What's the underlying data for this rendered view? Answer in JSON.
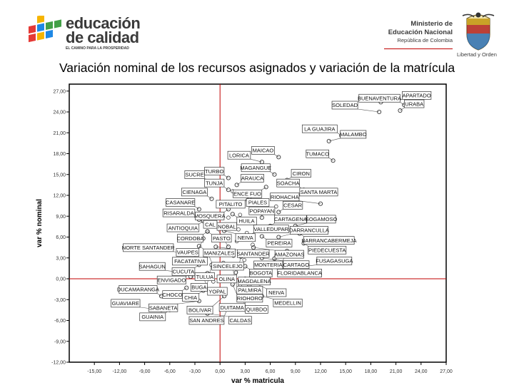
{
  "header": {
    "logo_line1": "educación",
    "logo_line2": "de calidad",
    "logo_tagline": "EL CAMINO PARA LA PROSPERIDAD",
    "ministry_line1": "Ministerio de",
    "ministry_line2": "Educación Nacional",
    "ministry_line3": "República de Colombia",
    "crest_caption": "Libertad y Orden",
    "logo_colors": [
      "#e53935",
      "#f6b400",
      "#1e88e5",
      "#43a047"
    ]
  },
  "chart_data": {
    "type": "scatter",
    "title": "Variación nominal de los recursos asignados y variación de la matrícula",
    "xlabel": "var % matricula",
    "ylabel": "var % nominal",
    "xlim": [
      -18,
      27
    ],
    "ylim": [
      -12,
      28
    ],
    "x_ticks": [
      -15,
      -12,
      -9,
      -6,
      -3,
      0,
      3,
      6,
      9,
      12,
      15,
      18,
      21,
      24,
      27
    ],
    "x_tick_labels": [
      "-15,00",
      "-12,00",
      "-9,00",
      "-6,00",
      "-3,00",
      "0,00",
      "3,00",
      "6,00",
      "9,00",
      "12,00",
      "15,00",
      "18,00",
      "21,00",
      "24,00",
      "27,00"
    ],
    "y_ticks": [
      -12,
      -9,
      -6,
      -3,
      0,
      3,
      6,
      9,
      12,
      15,
      18,
      21,
      24,
      27
    ],
    "y_tick_labels": [
      "-12,00",
      "-9,00",
      "-6,00",
      "-3,00",
      "0,00",
      "3,00",
      "6,00",
      "9,00",
      "12,00",
      "15,00",
      "18,00",
      "21,00",
      "24,00",
      "27,00"
    ],
    "reference_lines": {
      "x": 0,
      "y": 0,
      "color": "#c00000"
    },
    "grid": false,
    "points": [
      {
        "label": "BUENAVENTURA",
        "x": 22.0,
        "y": 25.0
      },
      {
        "label": "APARTADO",
        "x": 19.2,
        "y": 25.4
      },
      {
        "label": "URABA",
        "x": 21.5,
        "y": 24.2
      },
      {
        "label": "SOLEDAD",
        "x": 19.0,
        "y": 24.0
      },
      {
        "label": "LA GUAJIRA",
        "x": 14.5,
        "y": 20.6
      },
      {
        "label": "MALAMBO",
        "x": 13.0,
        "y": 19.8
      },
      {
        "label": "MAICAO",
        "x": 7.0,
        "y": 17.5
      },
      {
        "label": "LORICA",
        "x": 5.0,
        "y": 16.8
      },
      {
        "label": "TUMACO",
        "x": 13.5,
        "y": 17.0
      },
      {
        "label": "TURBO",
        "x": 1.0,
        "y": 14.5
      },
      {
        "label": "MAGANGUE",
        "x": 6.5,
        "y": 15.0
      },
      {
        "label": "SUCRE",
        "x": -0.5,
        "y": 14.0
      },
      {
        "label": "CIRON",
        "x": 8.0,
        "y": 14.2
      },
      {
        "label": "ARAUCA",
        "x": 2.0,
        "y": 13.5
      },
      {
        "label": "ENCE FUO",
        "x": 5.5,
        "y": 13.2
      },
      {
        "label": "TUNJA",
        "x": 1.0,
        "y": 12.8
      },
      {
        "label": "SOACHA",
        "x": 10.0,
        "y": 12.8
      },
      {
        "label": "PITALITO",
        "x": 3.5,
        "y": 11.7
      },
      {
        "label": "SANTA MARTA",
        "x": 9.0,
        "y": 11.5
      },
      {
        "label": "CIENAGA",
        "x": -1.0,
        "y": 11.5
      },
      {
        "label": "RIOHACHA",
        "x": 12.0,
        "y": 10.8
      },
      {
        "label": "PIALES",
        "x": 4.5,
        "y": 10.0
      },
      {
        "label": "CASANARE",
        "x": -2.5,
        "y": 10.0
      },
      {
        "label": "MOSQUERA",
        "x": 1.0,
        "y": 10.0
      },
      {
        "label": "CESAR",
        "x": 7.0,
        "y": 9.6
      },
      {
        "label": "HUILA",
        "x": 1.5,
        "y": 9.3
      },
      {
        "label": "RISARALDA",
        "x": -2.5,
        "y": 8.5
      },
      {
        "label": "ANTIOQUIA",
        "x": -2.0,
        "y": 8.3
      },
      {
        "label": "POPAYAN",
        "x": 5.0,
        "y": 8.8
      },
      {
        "label": "NOBAL",
        "x": 2.5,
        "y": 8.5
      },
      {
        "label": "CARTAGENA",
        "x": 6.0,
        "y": 7.6
      },
      {
        "label": "SOGAMOSO",
        "x": 9.0,
        "y": 7.6
      },
      {
        "label": "CORDOBA",
        "x": -1.5,
        "y": 6.8
      },
      {
        "label": "PASTO",
        "x": -1.5,
        "y": 6.8
      },
      {
        "label": "NEIVA",
        "x": 0.5,
        "y": 6.9
      },
      {
        "label": "BARRANCABERMEJA",
        "x": 9.5,
        "y": 6.5
      },
      {
        "label": "VALLEDUPAR",
        "x": 3.5,
        "y": 6.2
      },
      {
        "label": "PEREIRA",
        "x": 5.0,
        "y": 6.1
      },
      {
        "label": "DARRANCULLA",
        "x": 7.0,
        "y": 6.0
      },
      {
        "label": "VAUPES",
        "x": -2.0,
        "y": 5.8
      },
      {
        "label": "PIEDECUESTA",
        "x": 10.0,
        "y": 5.1
      },
      {
        "label": "MANIZALES",
        "x": -2.5,
        "y": 4.7
      },
      {
        "label": "SANTANDER",
        "x": -0.5,
        "y": 4.6
      },
      {
        "label": "CAL",
        "x": 1.0,
        "y": 4.6
      },
      {
        "label": "AMAZONAS",
        "x": 4.0,
        "y": 4.5
      },
      {
        "label": "MONTERIA",
        "x": 8.0,
        "y": 4.0
      },
      {
        "label": "NORTE SANTANDER",
        "x": -3.0,
        "y": 3.5
      },
      {
        "label": "FACATATIVA",
        "x": -1.0,
        "y": 3.5
      },
      {
        "label": "SINCELEJO",
        "x": -1.5,
        "y": 3.8
      },
      {
        "label": "OLINA",
        "x": 2.5,
        "y": 3.2
      },
      {
        "label": "CARTAGO",
        "x": 5.0,
        "y": 3.0
      },
      {
        "label": "MAGDALENA",
        "x": 6.5,
        "y": 2.9
      },
      {
        "label": "CUCUTA",
        "x": -2.5,
        "y": 2.0
      },
      {
        "label": "BUGA",
        "x": -1.0,
        "y": 2.0
      },
      {
        "label": "BOGOTA",
        "x": 3.0,
        "y": 1.8
      },
      {
        "label": "FLORIDABLANCA",
        "x": 5.5,
        "y": 1.8
      },
      {
        "label": "FUSAGASUGA",
        "x": 9.0,
        "y": 1.6
      },
      {
        "label": "PALMIRA",
        "x": 1.5,
        "y": 1.6
      },
      {
        "label": "SAHAGUN",
        "x": -4.0,
        "y": 0.8
      },
      {
        "label": "ENVIGADO",
        "x": -1.5,
        "y": 0.8
      },
      {
        "label": "TULUA",
        "x": -3.5,
        "y": 0.3
      },
      {
        "label": "YOPAL",
        "x": -2.0,
        "y": 0.2
      },
      {
        "label": "NEIVA",
        "x": 3.0,
        "y": 0.0
      },
      {
        "label": "CHOCO",
        "x": -4.0,
        "y": -1.3
      },
      {
        "label": "RIOHORO",
        "x": 1.5,
        "y": -0.8
      },
      {
        "label": "DUITAMA",
        "x": 3.5,
        "y": -0.9
      },
      {
        "label": "CHIA",
        "x": -2.0,
        "y": -1.7
      },
      {
        "label": "BOLIVAR",
        "x": 0.5,
        "y": -2.5
      },
      {
        "label": "QUIBDO",
        "x": 2.5,
        "y": -2.4
      },
      {
        "label": "MEDELLIN",
        "x": 5.0,
        "y": -2.5
      },
      {
        "label": "DUCAMARANGA",
        "x": -7.0,
        "y": -2.5
      },
      {
        "label": "SABANETA",
        "x": -2.5,
        "y": -3.2
      },
      {
        "label": "SAN ANDRES",
        "x": 1.0,
        "y": -4.0
      },
      {
        "label": "GUAVIARE",
        "x": -7.0,
        "y": -4.5
      },
      {
        "label": "GUAINIA",
        "x": -6.0,
        "y": -4.5
      },
      {
        "label": "CALDAS",
        "x": -1.5,
        "y": -5.0
      }
    ],
    "extra_points": [
      [
        1.5,
        12.6
      ],
      [
        2.4,
        9.2
      ],
      [
        1.0,
        8.8
      ],
      [
        3.7,
        8.1
      ],
      [
        2.2,
        7.1
      ],
      [
        3.2,
        6.6
      ],
      [
        0.6,
        5.7
      ],
      [
        2.0,
        5.4
      ],
      [
        3.9,
        4.9
      ],
      [
        1.6,
        3.3
      ],
      [
        2.9,
        2.7
      ],
      [
        0.4,
        2.3
      ],
      [
        1.9,
        0.9
      ],
      [
        4.3,
        1.2
      ],
      [
        0.7,
        -0.3
      ],
      [
        2.4,
        -1.1
      ],
      [
        -0.8,
        -0.4
      ],
      [
        5.4,
        3.7
      ],
      [
        6.2,
        5.2
      ],
      [
        4.7,
        6.9
      ],
      [
        -0.4,
        7.7
      ],
      [
        1.3,
        10.7
      ],
      [
        3.3,
        11.3
      ],
      [
        6.7,
        10.4
      ]
    ]
  }
}
